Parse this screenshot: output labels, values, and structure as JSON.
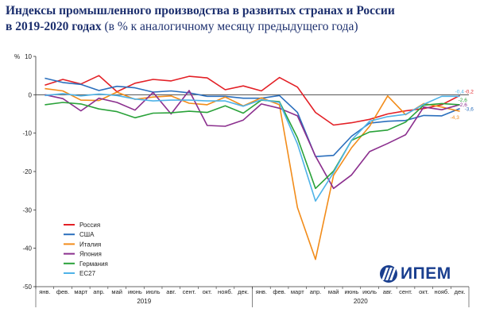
{
  "title": {
    "bold": "Индексы промышленного производства в развитых странах и России",
    "line2_bold": "в 2019-2020 годах",
    "line2_normal": "(в % к аналогичному месяцу предыдущего года)"
  },
  "logo": {
    "text": "ИПЕМ",
    "icon": "ipem-logo-icon"
  },
  "chart_data": {
    "type": "line",
    "ylabel": "%",
    "ylim": [
      -50,
      10
    ],
    "yticks": [
      10,
      0,
      -10,
      -20,
      -30,
      -40,
      -50
    ],
    "grid": false,
    "legend_position": "bottom-left",
    "categories": [
      "янв.",
      "фев.",
      "март",
      "апр.",
      "май",
      "июнь",
      "июль",
      "авг.",
      "сент.",
      "окт.",
      "нояб.",
      "дек.",
      "янв.",
      "фев.",
      "март",
      "апр.",
      "май",
      "июнь",
      "июль",
      "авг.",
      "сент.",
      "окт.",
      "нояб.",
      "дек."
    ],
    "year_labels": [
      "2019",
      "2020"
    ],
    "series": [
      {
        "name": "Россия",
        "color": "#e32026",
        "values": [
          2.5,
          4.0,
          2.8,
          5.0,
          0.8,
          3.0,
          4.0,
          3.6,
          4.8,
          4.4,
          1.3,
          2.3,
          1.0,
          4.5,
          2.0,
          -4.6,
          -7.9,
          -7.3,
          -6.4,
          -5.0,
          -4.2,
          -3.6,
          -2.6,
          -0.2
        ],
        "end_label": "-0,2"
      },
      {
        "name": "США",
        "color": "#2b6fbd",
        "values": [
          4.3,
          3.2,
          2.7,
          1.1,
          2.2,
          1.8,
          0.7,
          1.0,
          0.5,
          -0.4,
          -0.4,
          -0.9,
          -0.9,
          -0.2,
          -4.6,
          -16.1,
          -15.8,
          -10.8,
          -7.4,
          -6.9,
          -6.7,
          -5.4,
          -5.5,
          -3.6
        ],
        "end_label": "-3,6"
      },
      {
        "name": "Италия",
        "color": "#f28c1a",
        "values": [
          1.6,
          1.0,
          -1.4,
          -1.5,
          0.7,
          -1.2,
          -0.6,
          -0.3,
          -2.2,
          -2.6,
          -0.6,
          -2.9,
          -0.8,
          -2.6,
          -29.4,
          -42.9,
          -21.0,
          -13.8,
          -8.2,
          -0.3,
          -5.2,
          -2.3,
          -3.2,
          -4.3
        ],
        "end_label": "-4,3"
      },
      {
        "name": "Япония",
        "color": "#8b2f8e",
        "values": [
          0.0,
          -1.0,
          -4.2,
          -0.9,
          -2.0,
          -4.0,
          0.6,
          -5.0,
          1.1,
          -8.0,
          -8.2,
          -6.6,
          -2.4,
          -3.5,
          -5.5,
          -16.0,
          -24.4,
          -20.9,
          -14.8,
          -12.7,
          -10.4,
          -3.2,
          -3.9,
          -2.6
        ],
        "end_label": "-2,6"
      },
      {
        "name": "Германия",
        "color": "#2aa23a",
        "values": [
          -2.6,
          -2.0,
          -2.4,
          -3.7,
          -4.4,
          -6.0,
          -4.8,
          -4.7,
          -4.3,
          -4.6,
          -2.9,
          -4.8,
          -1.4,
          -1.8,
          -11.2,
          -24.4,
          -19.9,
          -11.9,
          -9.7,
          -9.2,
          -7.1,
          -2.7,
          -2.3,
          -2.6
        ],
        "end_label": "-2,6"
      },
      {
        "name": "ЕС27",
        "color": "#4fb3e8",
        "values": [
          -0.2,
          0.3,
          -0.3,
          0.2,
          -0.2,
          -1.1,
          -1.6,
          -1.4,
          -1.4,
          -1.6,
          -1.6,
          -3.0,
          -1.3,
          -2.0,
          -12.8,
          -27.7,
          -20.3,
          -11.8,
          -6.9,
          -5.7,
          -5.1,
          -2.5,
          -0.4,
          -0.4
        ],
        "end_label": "-0,4"
      }
    ]
  }
}
